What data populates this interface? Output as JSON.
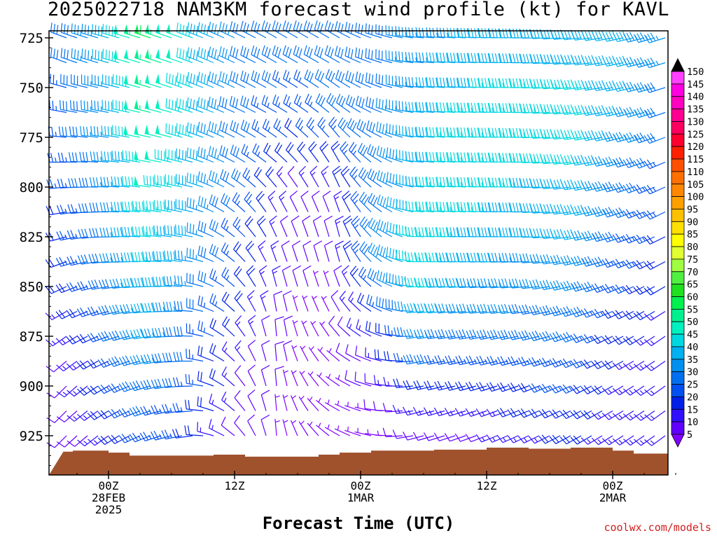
{
  "title": "2025022718 NAM3KM forecast wind profile (kt) for KAVL",
  "credit": "coolwx.com/models",
  "chart_data": {
    "type": "wind-barb-profile",
    "title": "2025022718 NAM3KM forecast wind profile (kt) for KAVL",
    "xlabel": "Forecast Time (UTC)",
    "ylabel": "",
    "y_scale": "pressure (hPa), increasing downward",
    "ylim": [
      715,
      945
    ],
    "y_ticks": [
      725,
      750,
      775,
      800,
      825,
      850,
      875,
      900,
      925
    ],
    "x_range_hours": [
      -4.3,
      55.2
    ],
    "x_ticks": [
      {
        "hour": 0,
        "label": "00Z",
        "date": "28FEB",
        "year": "2025"
      },
      {
        "hour": 12,
        "label": "12Z",
        "date": "",
        "year": ""
      },
      {
        "hour": 24,
        "label": "00Z",
        "date": "1MAR",
        "year": ""
      },
      {
        "hour": 36,
        "label": "12Z",
        "date": "",
        "year": ""
      },
      {
        "hour": 48,
        "label": "00Z",
        "date": "2MAR",
        "year": ""
      }
    ],
    "pressure_levels": [
      725,
      737.5,
      750,
      762.5,
      775,
      787.5,
      800,
      812.5,
      825,
      837.5,
      850,
      862.5,
      875,
      887.5,
      900,
      912.5,
      925
    ],
    "time_hours": [
      -4,
      -3,
      -2,
      -1,
      0,
      1,
      2,
      3,
      4,
      5,
      6,
      7,
      8,
      9,
      10,
      11,
      12,
      13,
      14,
      15,
      16,
      17,
      18,
      19,
      20,
      21,
      22,
      23,
      24,
      25,
      26,
      27,
      28,
      29,
      30,
      31,
      32,
      33,
      34,
      35,
      36,
      37,
      38,
      39,
      40,
      41,
      42,
      43,
      44,
      45,
      46,
      47,
      48,
      49,
      50,
      51,
      52,
      53,
      54,
      55
    ],
    "wind_speed_kt_keyframes": [
      {
        "hour": -4,
        "speeds": [
          28,
          28,
          27,
          26,
          25,
          24,
          23,
          22,
          21,
          20,
          18,
          16,
          14,
          12,
          10,
          9,
          8
        ]
      },
      {
        "hour": 0,
        "speeds": [
          38,
          38,
          37,
          36,
          35,
          34,
          33,
          32,
          31,
          30,
          28,
          26,
          24,
          22,
          20,
          18,
          16
        ]
      },
      {
        "hour": 4,
        "speeds": [
          58,
          57,
          55,
          53,
          52,
          50,
          48,
          46,
          45,
          44,
          42,
          40,
          38,
          35,
          32,
          28,
          25
        ]
      },
      {
        "hour": 8,
        "speeds": [
          45,
          45,
          44,
          44,
          43,
          42,
          41,
          40,
          38,
          36,
          34,
          32,
          30,
          28,
          26,
          24,
          22
        ]
      },
      {
        "hour": 13,
        "speeds": [
          30,
          30,
          30,
          29,
          29,
          29,
          28,
          26,
          24,
          22,
          20,
          18,
          16,
          14,
          12,
          11,
          10
        ]
      },
      {
        "hour": 18,
        "speeds": [
          30,
          28,
          26,
          24,
          22,
          18,
          12,
          10,
          8,
          8,
          8,
          7,
          7,
          6,
          6,
          5,
          5
        ]
      },
      {
        "hour": 21,
        "speeds": [
          30,
          30,
          29,
          28,
          26,
          20,
          14,
          12,
          10,
          8,
          7,
          6,
          5,
          5,
          5,
          5,
          5
        ]
      },
      {
        "hour": 26,
        "speeds": [
          30,
          30,
          30,
          32,
          32,
          32,
          32,
          32,
          34,
          34,
          30,
          24,
          18,
          14,
          10,
          8,
          6
        ]
      },
      {
        "hour": 30,
        "speeds": [
          35,
          36,
          37,
          38,
          40,
          40,
          42,
          44,
          46,
          46,
          44,
          40,
          34,
          28,
          22,
          16,
          10
        ]
      },
      {
        "hour": 34,
        "speeds": [
          38,
          40,
          42,
          44,
          45,
          46,
          45,
          44,
          42,
          40,
          38,
          35,
          30,
          26,
          22,
          16,
          10
        ]
      },
      {
        "hour": 40,
        "speeds": [
          40,
          42,
          44,
          46,
          46,
          44,
          42,
          40,
          38,
          36,
          34,
          32,
          30,
          26,
          22,
          18,
          15
        ]
      },
      {
        "hour": 45,
        "speeds": [
          40,
          42,
          44,
          45,
          46,
          44,
          42,
          40,
          38,
          36,
          34,
          30,
          28,
          26,
          24,
          22,
          20
        ]
      },
      {
        "hour": 49,
        "speeds": [
          40,
          40,
          40,
          38,
          36,
          34,
          32,
          30,
          28,
          26,
          24,
          22,
          20,
          18,
          17,
          15,
          14
        ]
      },
      {
        "hour": 55,
        "speeds": [
          30,
          30,
          28,
          28,
          26,
          24,
          22,
          20,
          18,
          17,
          16,
          15,
          14,
          14,
          13,
          13,
          13
        ]
      }
    ],
    "wind_direction_deg_keyframes": [
      {
        "hour": -4,
        "dirs": [
          290,
          290,
          285,
          280,
          275,
          270,
          265,
          260,
          255,
          250,
          245,
          240,
          235,
          230,
          225,
          225,
          225
        ]
      },
      {
        "hour": 0,
        "dirs": [
          285,
          285,
          282,
          280,
          277,
          275,
          272,
          270,
          268,
          265,
          260,
          255,
          250,
          245,
          240,
          238,
          235
        ]
      },
      {
        "hour": 8,
        "dirs": [
          290,
          290,
          290,
          288,
          287,
          285,
          283,
          282,
          280,
          278,
          276,
          274,
          272,
          270,
          268,
          265,
          262
        ]
      },
      {
        "hour": 16,
        "dirs": [
          300,
          300,
          300,
          300,
          305,
          310,
          320,
          330,
          335,
          340,
          345,
          350,
          355,
          355,
          355,
          355,
          355
        ]
      },
      {
        "hour": 22,
        "dirs": [
          300,
          300,
          305,
          310,
          320,
          330,
          335,
          340,
          345,
          345,
          340,
          330,
          320,
          310,
          305,
          300,
          300
        ]
      },
      {
        "hour": 30,
        "dirs": [
          275,
          275,
          275,
          275,
          275,
          275,
          275,
          275,
          272,
          270,
          268,
          265,
          262,
          260,
          258,
          255,
          255
        ]
      },
      {
        "hour": 40,
        "dirs": [
          270,
          270,
          270,
          270,
          270,
          270,
          270,
          270,
          270,
          268,
          265,
          262,
          258,
          255,
          250,
          248,
          245
        ]
      },
      {
        "hour": 55,
        "dirs": [
          250,
          250,
          250,
          248,
          246,
          244,
          242,
          240,
          240,
          238,
          236,
          234,
          232,
          232,
          232,
          232,
          232
        ]
      }
    ],
    "terrain_surface_pressure_hpa": [
      {
        "hour": -4.3,
        "p": 933
      },
      {
        "hour": -3.4,
        "p": 932.5
      },
      {
        "hour": 0,
        "p": 933.5
      },
      {
        "hour": 2,
        "p": 935
      },
      {
        "hour": 10,
        "p": 934.5
      },
      {
        "hour": 13,
        "p": 935.5
      },
      {
        "hour": 20,
        "p": 934.5
      },
      {
        "hour": 22,
        "p": 933.5
      },
      {
        "hour": 25,
        "p": 932.5
      },
      {
        "hour": 31,
        "p": 932
      },
      {
        "hour": 36,
        "p": 931
      },
      {
        "hour": 40,
        "p": 931.5
      },
      {
        "hour": 44,
        "p": 931
      },
      {
        "hour": 48,
        "p": 932.5
      },
      {
        "hour": 50,
        "p": 934
      },
      {
        "hour": 55.2,
        "p": 935.5
      }
    ],
    "terrain_color": "#a0522d",
    "colorbar": {
      "label_values": [
        5,
        10,
        15,
        20,
        25,
        30,
        35,
        40,
        45,
        50,
        55,
        60,
        65,
        70,
        75,
        80,
        85,
        90,
        95,
        100,
        105,
        110,
        115,
        120,
        125,
        130,
        135,
        140,
        145,
        150
      ],
      "colors": [
        "#8000ff",
        "#6000ff",
        "#3010ff",
        "#0020e8",
        "#0050f0",
        "#0070f0",
        "#0090f0",
        "#00b0f0",
        "#00d8e0",
        "#00f0c0",
        "#00f090",
        "#00f050",
        "#20e020",
        "#50f040",
        "#a0ff40",
        "#e0ff30",
        "#ffff00",
        "#ffe000",
        "#ffc000",
        "#ffa000",
        "#ff8800",
        "#ff7000",
        "#ff5000",
        "#ff2000",
        "#ff0030",
        "#ff0060",
        "#ff0090",
        "#ff00c0",
        "#ff00e0",
        "#ff40ff"
      ]
    }
  }
}
